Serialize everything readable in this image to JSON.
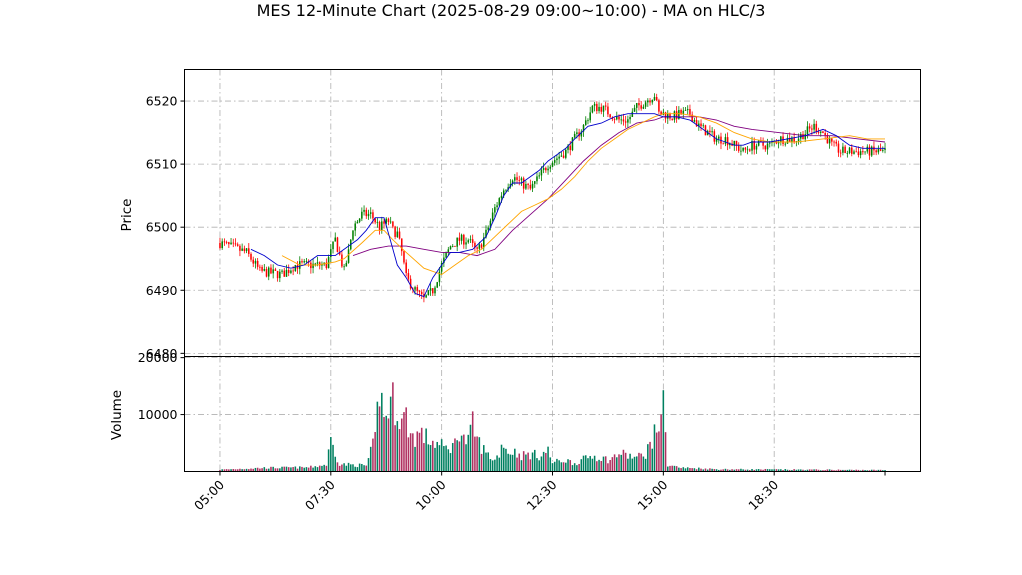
{
  "chart_data": {
    "type": "candlestick",
    "title": "MES 12-Minute Chart (2025-08-29 09:00~10:00) - MA on HLC/3",
    "ylabel": "Price",
    "volume_ylabel": "Volume",
    "x_tick_labels": [
      "05:00",
      "07:30",
      "10:00",
      "12:30",
      "15:00",
      "18:30"
    ],
    "x_tick_positions": [
      0,
      25,
      50,
      75,
      100,
      125
    ],
    "x_range": [
      -8,
      158
    ],
    "price_ylim": [
      6479.5,
      6525.0
    ],
    "price_ticks": [
      6480,
      6490,
      6500,
      6510,
      6520
    ],
    "volume_ylim": [
      0,
      20200
    ],
    "volume_ticks": [
      10000,
      20000
    ],
    "grid": true,
    "colors": {
      "up": "#008000",
      "down": "#ff0000",
      "volume_up": "#008060",
      "volume_down": "#b03060",
      "ma_fast": "#0000cc",
      "ma_mid": "#ffa500",
      "ma_slow": "#800080",
      "grid": "#b0b0b0"
    },
    "close_path": [
      [
        0,
        6497.5
      ],
      [
        6,
        6496
      ],
      [
        9,
        6493
      ],
      [
        14,
        6492.5
      ],
      [
        17,
        6494
      ],
      [
        20,
        6494
      ],
      [
        24,
        6494
      ],
      [
        26,
        6498
      ],
      [
        28,
        6493
      ],
      [
        29,
        6496
      ],
      [
        30,
        6500
      ],
      [
        32,
        6502
      ],
      [
        34,
        6502
      ],
      [
        36,
        6500
      ],
      [
        38,
        6501
      ],
      [
        39,
        6499.5
      ],
      [
        40,
        6499
      ],
      [
        41,
        6496
      ],
      [
        42,
        6492
      ],
      [
        44,
        6490
      ],
      [
        46,
        6488.5
      ],
      [
        48,
        6490
      ],
      [
        50,
        6494
      ],
      [
        52,
        6497
      ],
      [
        54,
        6498
      ],
      [
        56,
        6498
      ],
      [
        58,
        6496
      ],
      [
        60,
        6499
      ],
      [
        62,
        6503
      ],
      [
        64,
        6506
      ],
      [
        66,
        6508
      ],
      [
        68,
        6507
      ],
      [
        70,
        6506
      ],
      [
        72,
        6508
      ],
      [
        74,
        6510
      ],
      [
        76,
        6511
      ],
      [
        78,
        6512
      ],
      [
        80,
        6514
      ],
      [
        82,
        6516
      ],
      [
        84,
        6519
      ],
      [
        86,
        6519
      ],
      [
        88,
        6518
      ],
      [
        90,
        6517
      ],
      [
        92,
        6517
      ],
      [
        94,
        6519
      ],
      [
        96,
        6520
      ],
      [
        98,
        6521
      ],
      [
        99,
        6518
      ],
      [
        100,
        6518
      ],
      [
        102,
        6517.5
      ],
      [
        104,
        6518
      ],
      [
        106,
        6518
      ],
      [
        108,
        6516
      ],
      [
        110,
        6515
      ],
      [
        112,
        6514
      ],
      [
        114,
        6514
      ],
      [
        116,
        6513
      ],
      [
        118,
        6512
      ],
      [
        120,
        6513
      ],
      [
        122,
        6513
      ],
      [
        124,
        6513
      ],
      [
        126,
        6514
      ],
      [
        128,
        6514
      ],
      [
        130,
        6514
      ],
      [
        132,
        6515
      ],
      [
        134,
        6516
      ],
      [
        136,
        6515
      ],
      [
        138,
        6513
      ],
      [
        140,
        6512
      ],
      [
        142,
        6512
      ],
      [
        144,
        6512
      ],
      [
        146,
        6512
      ],
      [
        148,
        6512
      ],
      [
        150,
        6512
      ]
    ],
    "ma_fast": [
      [
        7,
        6496.5
      ],
      [
        10,
        6495.5
      ],
      [
        13,
        6494
      ],
      [
        16,
        6493.5
      ],
      [
        19,
        6494
      ],
      [
        22,
        6495.5
      ],
      [
        26,
        6495.5
      ],
      [
        29,
        6497
      ],
      [
        31,
        6498
      ],
      [
        33,
        6499.5
      ],
      [
        35,
        6501.5
      ],
      [
        37,
        6501.5
      ],
      [
        38,
        6499
      ],
      [
        40,
        6494
      ],
      [
        42,
        6492
      ],
      [
        44,
        6489.5
      ],
      [
        46,
        6489
      ],
      [
        48,
        6492
      ],
      [
        50,
        6494
      ],
      [
        52,
        6496
      ],
      [
        54,
        6496
      ],
      [
        57,
        6496.5
      ],
      [
        60,
        6498.5
      ],
      [
        62,
        6501.5
      ],
      [
        64,
        6505
      ],
      [
        66,
        6507
      ],
      [
        68,
        6507
      ],
      [
        70,
        6508
      ],
      [
        72,
        6509
      ],
      [
        74,
        6510.5
      ],
      [
        76,
        6511.5
      ],
      [
        78,
        6512.5
      ],
      [
        80,
        6514
      ],
      [
        83,
        6516
      ],
      [
        86,
        6516.5
      ],
      [
        89,
        6517.5
      ],
      [
        92,
        6518
      ],
      [
        95,
        6518
      ],
      [
        98,
        6518
      ],
      [
        100,
        6517.5
      ],
      [
        103,
        6517.5
      ],
      [
        106,
        6517
      ],
      [
        108,
        6516
      ],
      [
        110,
        6515
      ],
      [
        112,
        6514
      ],
      [
        114,
        6513.5
      ],
      [
        116,
        6513
      ],
      [
        118,
        6513
      ],
      [
        120,
        6513.5
      ],
      [
        124,
        6513.5
      ],
      [
        128,
        6514
      ],
      [
        132,
        6514.5
      ],
      [
        136,
        6515.5
      ],
      [
        139,
        6514.5
      ],
      [
        142,
        6513
      ],
      [
        145,
        6512.5
      ],
      [
        150,
        6512.5
      ]
    ],
    "ma_mid": [
      [
        14,
        6495.5
      ],
      [
        18,
        6494
      ],
      [
        22,
        6494
      ],
      [
        26,
        6494.5
      ],
      [
        28,
        6495
      ],
      [
        32,
        6497.5
      ],
      [
        35,
        6499.5
      ],
      [
        37,
        6499.5
      ],
      [
        39,
        6498
      ],
      [
        42,
        6496
      ],
      [
        46,
        6493.5
      ],
      [
        50,
        6492.5
      ],
      [
        53,
        6494
      ],
      [
        56,
        6495.5
      ],
      [
        59,
        6496.5
      ],
      [
        62,
        6498.5
      ],
      [
        65,
        6500.5
      ],
      [
        68,
        6502.5
      ],
      [
        71,
        6503.5
      ],
      [
        74,
        6504.5
      ],
      [
        77,
        6506
      ],
      [
        80,
        6508
      ],
      [
        83,
        6510.5
      ],
      [
        86,
        6512.5
      ],
      [
        89,
        6514
      ],
      [
        92,
        6515.5
      ],
      [
        95,
        6516.5
      ],
      [
        98,
        6517.5
      ],
      [
        100,
        6518
      ],
      [
        104,
        6518
      ],
      [
        108,
        6517.5
      ],
      [
        112,
        6516.5
      ],
      [
        116,
        6515
      ],
      [
        120,
        6514
      ],
      [
        124,
        6513.5
      ],
      [
        130,
        6513.5
      ],
      [
        136,
        6514
      ],
      [
        142,
        6514.5
      ],
      [
        146,
        6514
      ],
      [
        150,
        6514
      ]
    ],
    "ma_slow": [
      [
        30,
        6495.5
      ],
      [
        34,
        6496.5
      ],
      [
        38,
        6497
      ],
      [
        42,
        6497
      ],
      [
        46,
        6496.5
      ],
      [
        50,
        6496
      ],
      [
        54,
        6496
      ],
      [
        58,
        6495.5
      ],
      [
        62,
        6496.5
      ],
      [
        66,
        6499.5
      ],
      [
        70,
        6502
      ],
      [
        74,
        6504.5
      ],
      [
        78,
        6507.5
      ],
      [
        82,
        6510.5
      ],
      [
        86,
        6513
      ],
      [
        90,
        6515
      ],
      [
        94,
        6516.5
      ],
      [
        98,
        6517
      ],
      [
        100,
        6517.5
      ],
      [
        104,
        6517.5
      ],
      [
        108,
        6517.5
      ],
      [
        112,
        6517
      ],
      [
        116,
        6516
      ],
      [
        120,
        6515.5
      ],
      [
        126,
        6515
      ],
      [
        132,
        6514.5
      ],
      [
        138,
        6514.5
      ],
      [
        144,
        6514
      ],
      [
        150,
        6513.5
      ]
    ],
    "volume_peaks": [
      [
        0,
        400
      ],
      [
        10,
        800
      ],
      [
        20,
        900
      ],
      [
        24,
        1500
      ],
      [
        25,
        6800
      ],
      [
        27,
        1600
      ],
      [
        33,
        1300
      ],
      [
        35,
        7000
      ],
      [
        36,
        19000
      ],
      [
        37,
        11500
      ],
      [
        38,
        14000
      ],
      [
        39,
        15500
      ],
      [
        40,
        13500
      ],
      [
        41,
        11000
      ],
      [
        42,
        12000
      ],
      [
        43,
        8000
      ],
      [
        44,
        7500
      ],
      [
        45,
        8500
      ],
      [
        47,
        7000
      ],
      [
        49,
        6000
      ],
      [
        51,
        5000
      ],
      [
        53,
        6000
      ],
      [
        54,
        9500
      ],
      [
        55,
        7000
      ],
      [
        56,
        6500
      ],
      [
        57,
        10200
      ],
      [
        58,
        7000
      ],
      [
        60,
        4000
      ],
      [
        62,
        2500
      ],
      [
        63,
        4000
      ],
      [
        64,
        6800
      ],
      [
        65,
        4000
      ],
      [
        66,
        4500
      ],
      [
        68,
        3500
      ],
      [
        70,
        3800
      ],
      [
        72,
        3500
      ],
      [
        74,
        4500
      ],
      [
        75,
        2000
      ],
      [
        78,
        2500
      ],
      [
        80,
        1800
      ],
      [
        84,
        3500
      ],
      [
        86,
        3000
      ],
      [
        88,
        2500
      ],
      [
        90,
        4000
      ],
      [
        94,
        3000
      ],
      [
        96,
        4000
      ],
      [
        97,
        6000
      ],
      [
        98,
        8000
      ],
      [
        99,
        10000
      ],
      [
        99.5,
        15200
      ],
      [
        100,
        14000
      ],
      [
        101,
        1500
      ],
      [
        104,
        800
      ],
      [
        108,
        700
      ],
      [
        112,
        500
      ],
      [
        120,
        450
      ],
      [
        130,
        400
      ],
      [
        140,
        350
      ],
      [
        150,
        300
      ]
    ]
  }
}
